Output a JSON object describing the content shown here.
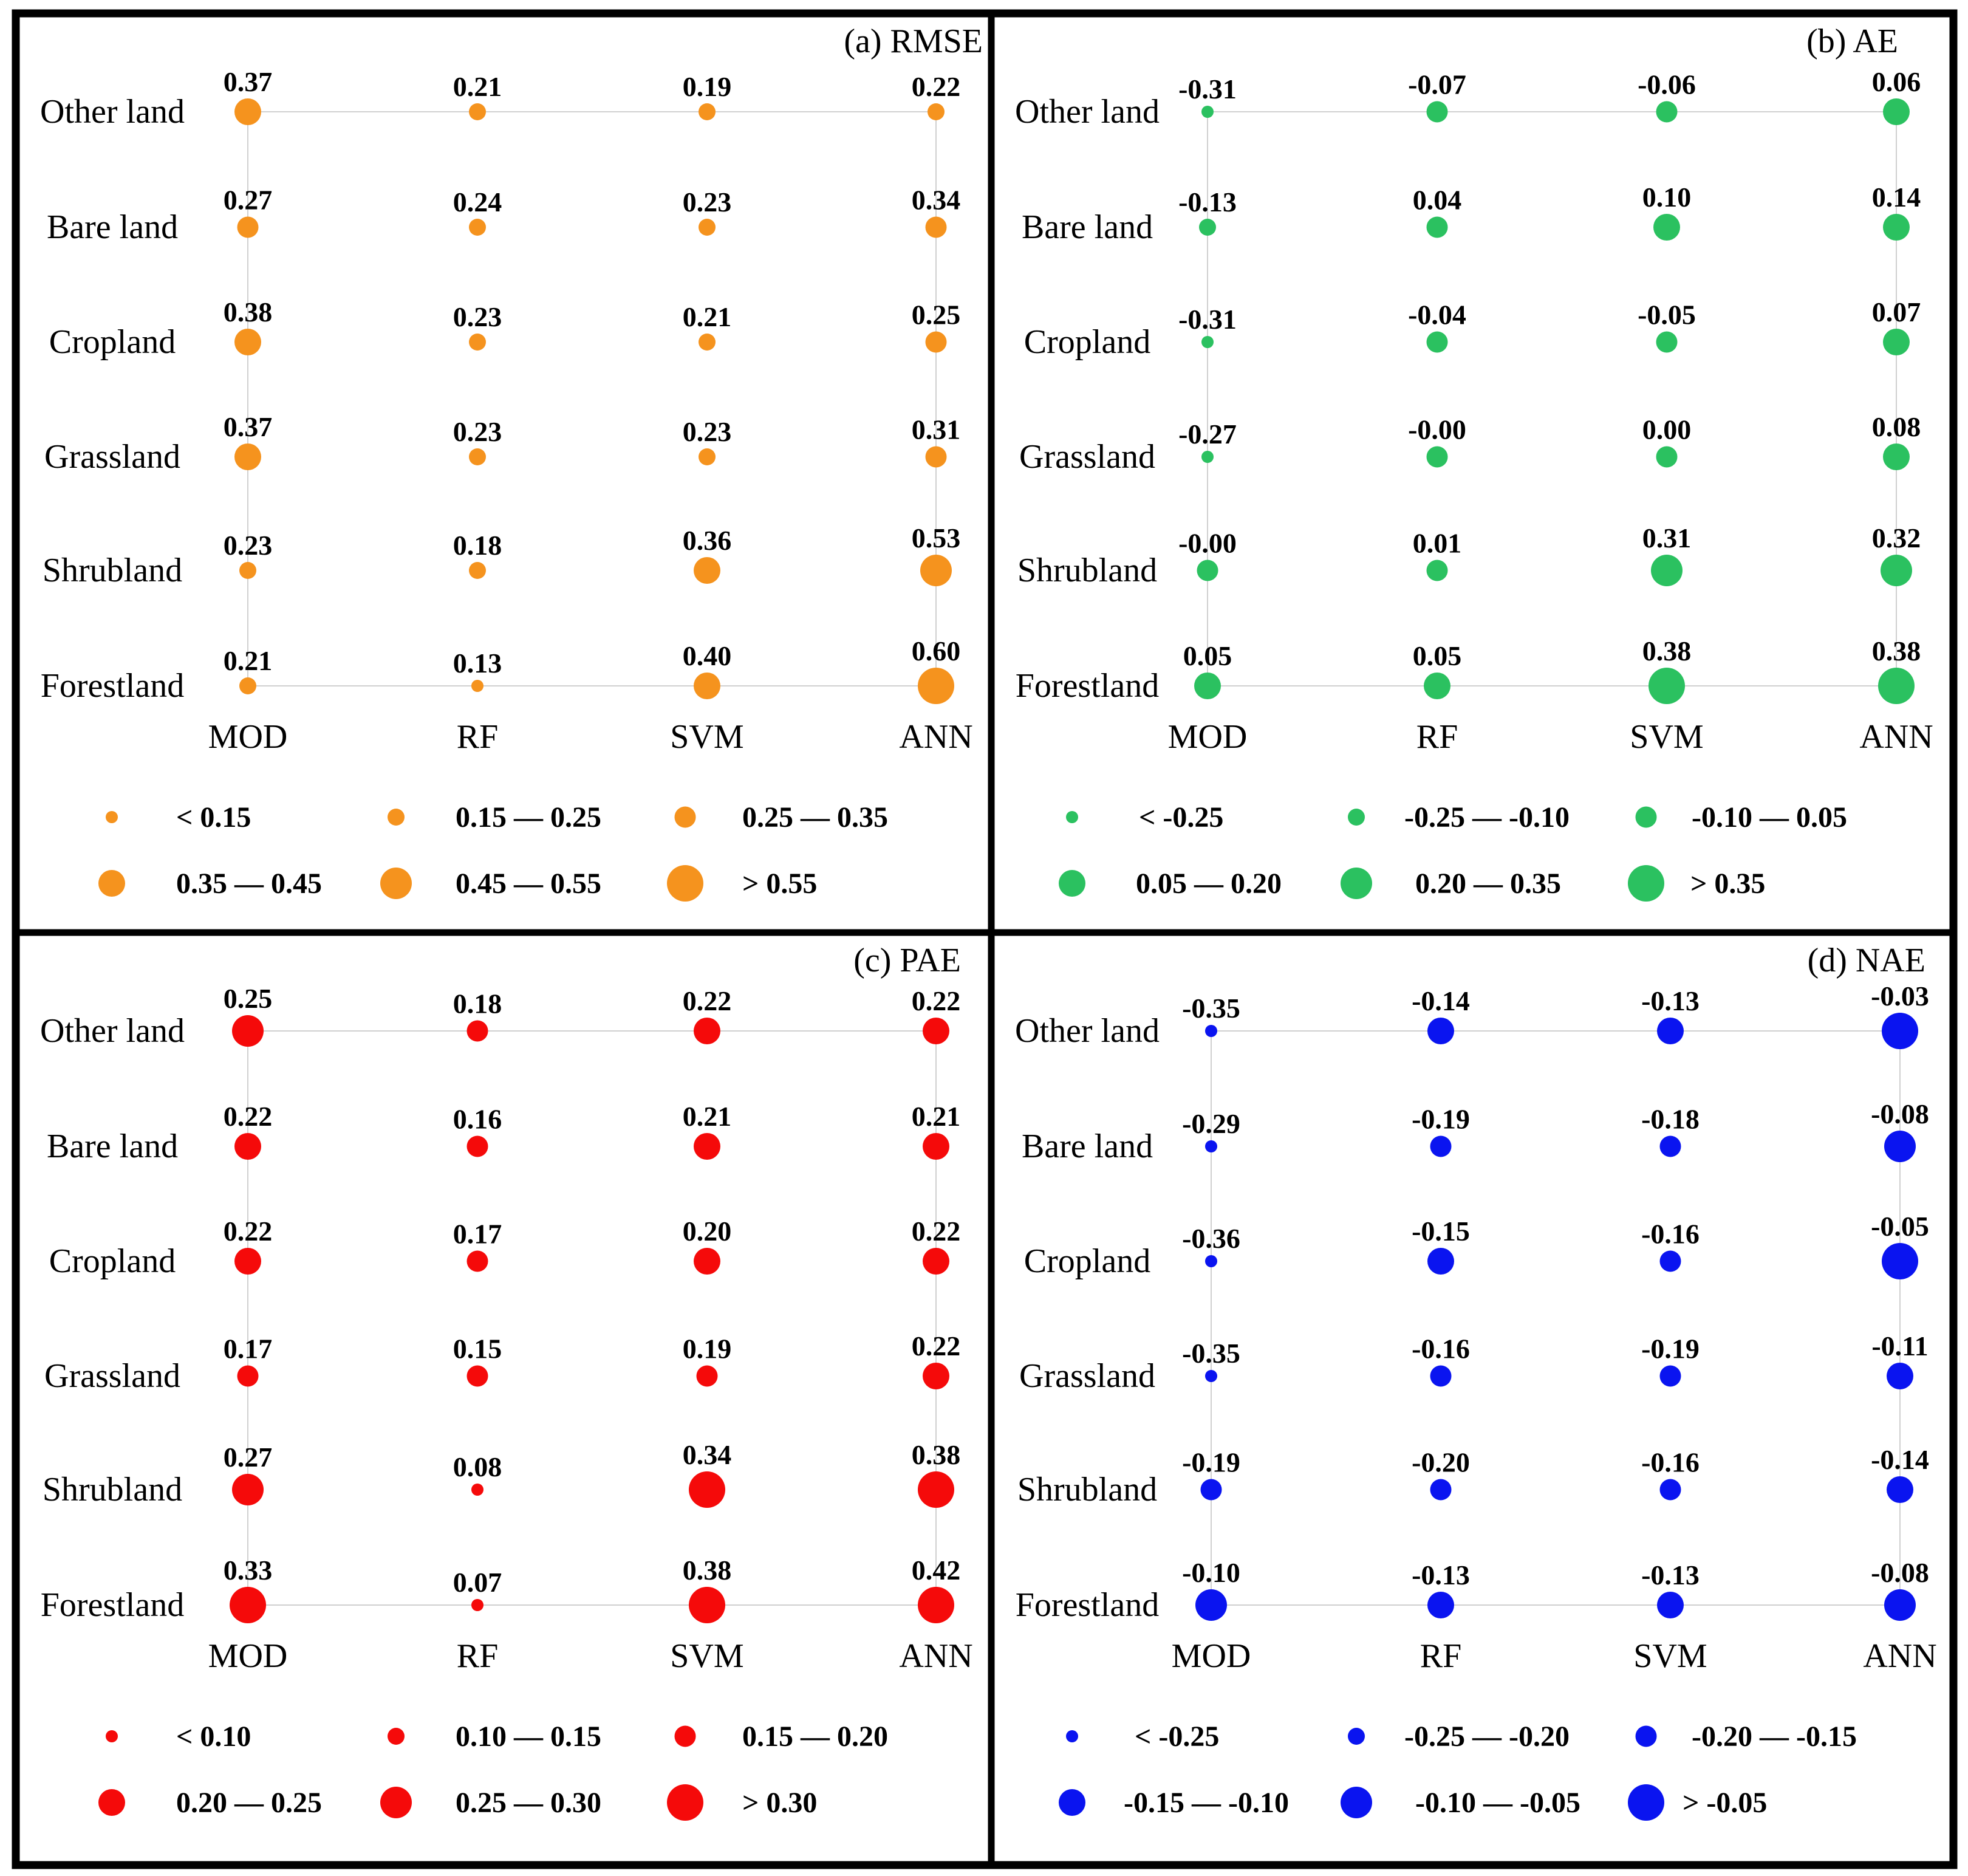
{
  "chart_data": [
    {
      "type": "scatter",
      "panel_id": "a",
      "title": "(a) RMSE",
      "color": "#F5931E",
      "categories": [
        "Other land",
        "Bare land",
        "Cropland",
        "Grassland",
        "Shrubland",
        "Forestland"
      ],
      "methods": [
        "MOD",
        "RF",
        "SVM",
        "ANN"
      ],
      "values": [
        [
          "0.37",
          "0.21",
          "0.19",
          "0.22"
        ],
        [
          "0.27",
          "0.24",
          "0.23",
          "0.34"
        ],
        [
          "0.38",
          "0.23",
          "0.21",
          "0.25"
        ],
        [
          "0.37",
          "0.23",
          "0.23",
          "0.31"
        ],
        [
          "0.23",
          "0.18",
          "0.36",
          "0.53"
        ],
        [
          "0.21",
          "0.13",
          "0.40",
          "0.60"
        ]
      ],
      "thresholds": [
        0.15,
        0.25,
        0.35,
        0.45,
        0.55
      ],
      "legend": [
        "<   0.15",
        "0.15 — 0.25",
        "0.25 — 0.35",
        "0.35 — 0.45",
        "0.45 — 0.55",
        ">   0.55"
      ]
    },
    {
      "type": "scatter",
      "panel_id": "b",
      "title": "(b) AE",
      "color": "#2BC160",
      "categories": [
        "Other land",
        "Bare land",
        "Cropland",
        "Grassland",
        "Shrubland",
        "Forestland"
      ],
      "methods": [
        "MOD",
        "RF",
        "SVM",
        "ANN"
      ],
      "values": [
        [
          "-0.31",
          "-0.07",
          "-0.06",
          "0.06"
        ],
        [
          "-0.13",
          "0.04",
          "0.10",
          "0.14"
        ],
        [
          "-0.31",
          "-0.04",
          "-0.05",
          "0.07"
        ],
        [
          "-0.27",
          "-0.00",
          "0.00",
          "0.08"
        ],
        [
          "-0.00",
          "0.01",
          "0.31",
          "0.32"
        ],
        [
          "0.05",
          "0.05",
          "0.38",
          "0.38"
        ]
      ],
      "thresholds": [
        -0.25,
        -0.1,
        0.05,
        0.2,
        0.35
      ],
      "legend": [
        "<  -0.25",
        "-0.25 — -0.10",
        "-0.10 —  0.05",
        "0.05 — 0.20",
        "0.20 — 0.35",
        ">  0.35"
      ]
    },
    {
      "type": "scatter",
      "panel_id": "c",
      "title": "(c) PAE",
      "color": "#F50A0A",
      "categories": [
        "Other land",
        "Bare land",
        "Cropland",
        "Grassland",
        "Shrubland",
        "Forestland"
      ],
      "methods": [
        "MOD",
        "RF",
        "SVM",
        "ANN"
      ],
      "values": [
        [
          "0.25",
          "0.18",
          "0.22",
          "0.22"
        ],
        [
          "0.22",
          "0.16",
          "0.21",
          "0.21"
        ],
        [
          "0.22",
          "0.17",
          "0.20",
          "0.22"
        ],
        [
          "0.17",
          "0.15",
          "0.19",
          "0.22"
        ],
        [
          "0.27",
          "0.08",
          "0.34",
          "0.38"
        ],
        [
          "0.33",
          "0.07",
          "0.38",
          "0.42"
        ]
      ],
      "thresholds": [
        0.1,
        0.15,
        0.2,
        0.25,
        0.3
      ],
      "legend": [
        "<   0.10",
        "0.10 — 0.15",
        "0.15 — 0.20",
        "0.20 — 0.25",
        "0.25 — 0.30",
        ">   0.30"
      ]
    },
    {
      "type": "scatter",
      "panel_id": "d",
      "title": "(d) NAE",
      "color": "#0A14F0",
      "categories": [
        "Other land",
        "Bare land",
        "Cropland",
        "Grassland",
        "Shrubland",
        "Forestland"
      ],
      "methods": [
        "MOD",
        "RF",
        "SVM",
        "ANN"
      ],
      "values": [
        [
          "-0.35",
          "-0.14",
          "-0.13",
          "-0.03"
        ],
        [
          "-0.29",
          "-0.19",
          "-0.18",
          "-0.08"
        ],
        [
          "-0.36",
          "-0.15",
          "-0.16",
          "-0.05"
        ],
        [
          "-0.35",
          "-0.16",
          "-0.19",
          "-0.11"
        ],
        [
          "-0.19",
          "-0.20",
          "-0.16",
          "-0.14"
        ],
        [
          "-0.10",
          "-0.13",
          "-0.13",
          "-0.08"
        ]
      ],
      "thresholds": [
        -0.25,
        -0.2,
        -0.15,
        -0.1,
        -0.05
      ],
      "legend": [
        "<  -0.25",
        "-0.25 — -0.20",
        "-0.20 — -0.15",
        "-0.15 — -0.10",
        "-0.10 — -0.05",
        "> -0.05"
      ]
    }
  ]
}
